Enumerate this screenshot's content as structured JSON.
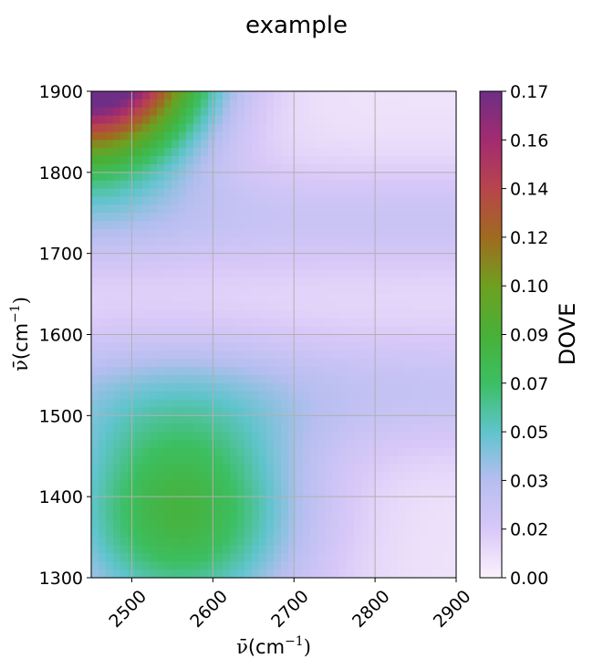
{
  "chart_data": {
    "type": "heatmap",
    "title": "example",
    "xlabel_symbol": "ν̄",
    "xlabel_unit": "(cm",
    "xlabel_exp": "−1",
    "xlabel_close": ")",
    "ylabel_symbol": "ν̄",
    "ylabel_unit": "(cm",
    "ylabel_exp": "−1",
    "ylabel_close": ")",
    "xlim": [
      2450,
      2900
    ],
    "ylim": [
      1300,
      1900
    ],
    "xticks": [
      2500,
      2600,
      2700,
      2800,
      2900
    ],
    "yticks": [
      1300,
      1400,
      1500,
      1600,
      1700,
      1800,
      1900
    ],
    "grid": true,
    "colorbar": {
      "label": "DOVE",
      "range": [
        0,
        0.17
      ],
      "tick_labels": [
        "0.00",
        "0.02",
        "0.03",
        "0.05",
        "0.07",
        "0.09",
        "0.10",
        "0.12",
        "0.14",
        "0.16",
        "0.17"
      ],
      "colors": [
        "#fbf2fc",
        "#d8c8f8",
        "#b6bef0",
        "#5fc4cc",
        "#3cbf62",
        "#48b038",
        "#6ea020",
        "#a06a20",
        "#b8444c",
        "#a22b70",
        "#6e2e86"
      ]
    },
    "components": [
      {
        "kind": "gauss2d",
        "x0": 2560,
        "y0": 1380,
        "amp": 0.075,
        "sx": 150,
        "sy": 140
      },
      {
        "kind": "gauss2d",
        "x0": 2450,
        "y0": 1950,
        "amp": 0.22,
        "sx": 130,
        "sy": 130
      },
      {
        "kind": "ybump",
        "y0": 1740,
        "amp": 0.018,
        "sy": 70
      },
      {
        "kind": "ybump",
        "y0": 1530,
        "amp": 0.02,
        "sy": 80
      },
      {
        "kind": "const",
        "amp": 0.006
      }
    ]
  }
}
